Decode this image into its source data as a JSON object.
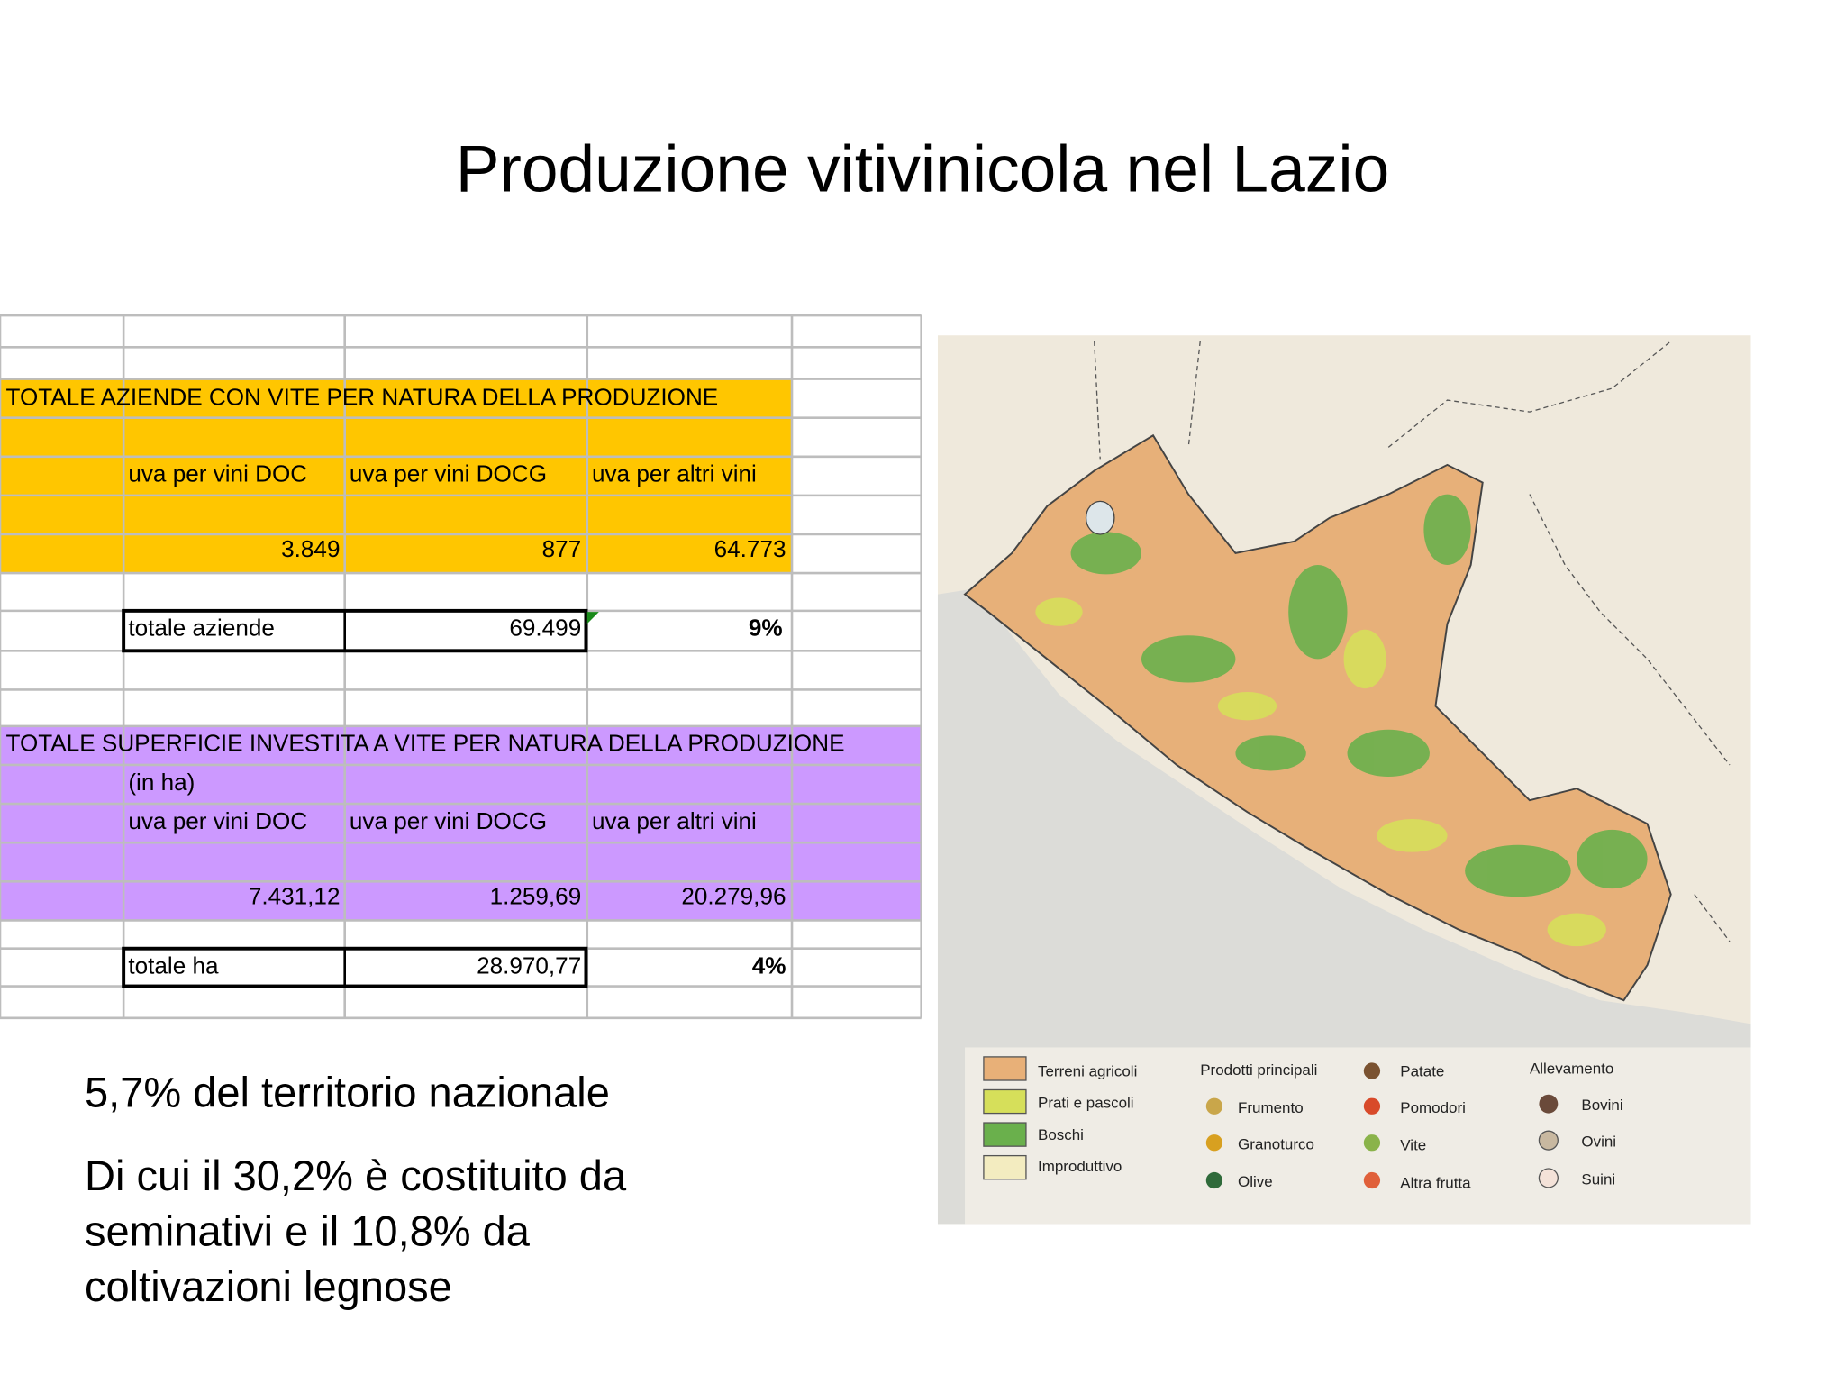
{
  "title": "Produzione vitivinicola nel Lazio",
  "table1": {
    "title": "TOTALE AZIENDE CON VITE PER NATURA DELLA PRODUZIONE",
    "headers": [
      "uva per vini DOC",
      "uva per vini DOCG",
      "uva per altri vini"
    ],
    "values": [
      "3.849",
      "877",
      "64.773"
    ],
    "total_label": "totale aziende",
    "total": "69.499",
    "percent": "9%"
  },
  "table2": {
    "title": "TOTALE SUPERFICIE INVESTITA A VITE PER NATURA DELLA PRODUZIONE",
    "unit": "(in ha)",
    "headers": [
      "uva per vini DOC",
      "uva per vini DOCG",
      "uva per altri vini"
    ],
    "values": [
      "7.431,12",
      "1.259,69",
      "20.279,96"
    ],
    "total_label": "totale ha",
    "total": "28.970,77",
    "percent": "4%"
  },
  "bullets": [
    {
      "lines": [
        "5,7% del territorio nazionale"
      ]
    },
    {
      "lines": [
        "Di cui il 30,2% è costituito da",
        "seminativi e il 10,8% da",
        "coltivazioni legnose"
      ]
    }
  ],
  "map": {
    "legend": {
      "land": [
        "Terreni agricoli",
        "Prati e pascoli",
        "Boschi",
        "Improduttivo"
      ],
      "products_title": "Prodotti principali",
      "products": [
        "Frumento",
        "Granoturco",
        "Olive",
        "Patate",
        "Pomodori",
        "Vite",
        "Altra frutta"
      ],
      "livestock_title": "Allevamento",
      "livestock": [
        "Bovini",
        "Ovini",
        "Suini"
      ]
    }
  }
}
